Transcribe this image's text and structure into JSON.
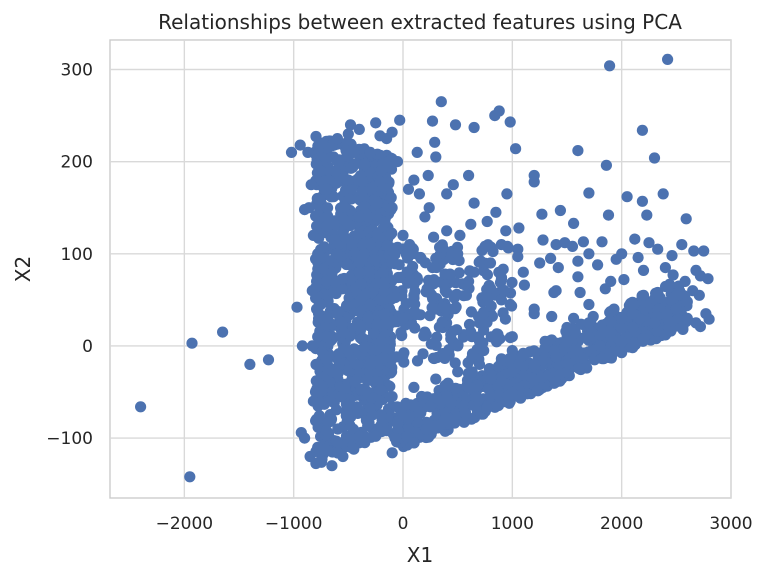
{
  "chart_data": {
    "type": "scatter",
    "title": "Relationships between extracted features using PCA",
    "xlabel": "X1",
    "ylabel": "X2",
    "xlim": [
      -2680,
      3000
    ],
    "ylim": [
      -165,
      332
    ],
    "xticks": [
      -2000,
      -1000,
      0,
      1000,
      2000,
      3000
    ],
    "yticks": [
      -100,
      0,
      100,
      200,
      300
    ],
    "xtick_labels": [
      "−2000",
      "−1000",
      "0",
      "1000",
      "2000",
      "3000"
    ],
    "ytick_labels": [
      "−100",
      "0",
      "100",
      "200",
      "300"
    ],
    "grid": true,
    "legend": "none",
    "marker_color": "#4c72b0",
    "series": [
      {
        "points": [
          [
            -2400,
            -66
          ],
          [
            -1950,
            -142
          ],
          [
            -1930,
            3
          ],
          [
            -1650,
            15
          ],
          [
            -1400,
            -20
          ],
          [
            -1230,
            -15
          ],
          [
            -1020,
            210
          ],
          [
            -940,
            218
          ],
          [
            -870,
            210
          ],
          [
            -970,
            42
          ],
          [
            -920,
            0
          ],
          [
            -930,
            -94
          ],
          [
            -900,
            -100
          ],
          [
            -860,
            150
          ],
          [
            -900,
            148
          ],
          [
            350,
            265
          ],
          [
            880,
            255
          ],
          [
            840,
            250
          ],
          [
            980,
            243
          ],
          [
            1030,
            214
          ],
          [
            480,
            240
          ],
          [
            650,
            237
          ],
          [
            270,
            244
          ],
          [
            290,
            221
          ],
          [
            130,
            210
          ],
          [
            -100,
            232
          ],
          [
            -150,
            225
          ],
          [
            -210,
            228
          ],
          [
            1890,
            304
          ],
          [
            2420,
            311
          ],
          [
            2190,
            234
          ],
          [
            2300,
            204
          ],
          [
            1600,
            212
          ],
          [
            1860,
            196
          ],
          [
            2380,
            165
          ],
          [
            1700,
            166
          ],
          [
            2050,
            162
          ],
          [
            2190,
            157
          ],
          [
            1880,
            142
          ],
          [
            2590,
            138
          ],
          [
            2230,
            142
          ],
          [
            2120,
            116
          ],
          [
            2250,
            112
          ],
          [
            1820,
            113
          ],
          [
            1200,
            185
          ],
          [
            1200,
            178
          ],
          [
            460,
            175
          ],
          [
            150,
            165
          ],
          [
            240,
            150
          ],
          [
            1060,
            128
          ],
          [
            1270,
            143
          ],
          [
            1440,
            147
          ],
          [
            1560,
            133
          ],
          [
            1650,
            113
          ],
          [
            1400,
            110
          ],
          [
            1480,
            112
          ],
          [
            1550,
            108
          ],
          [
            1280,
            115
          ],
          [
            940,
            125
          ],
          [
            770,
            135
          ],
          [
            620,
            132
          ],
          [
            520,
            120
          ],
          [
            400,
            125
          ],
          [
            280,
            118
          ],
          [
            750,
            108
          ],
          [
            900,
            110
          ],
          [
            1050,
            97
          ],
          [
            1250,
            90
          ],
          [
            1420,
            85
          ],
          [
            1600,
            92
          ],
          [
            1780,
            88
          ],
          [
            1950,
            94
          ],
          [
            2150,
            96
          ],
          [
            2330,
            105
          ],
          [
            2460,
            98
          ],
          [
            2660,
            103
          ],
          [
            2750,
            103
          ],
          [
            2720,
            76
          ],
          [
            2790,
            73
          ],
          [
            2680,
            82
          ],
          [
            2580,
            70
          ],
          [
            2470,
            77
          ],
          [
            2200,
            82
          ],
          [
            2020,
            72
          ],
          [
            1850,
            62
          ],
          [
            1620,
            58
          ],
          [
            1380,
            58
          ],
          [
            1110,
            66
          ],
          [
            900,
            72
          ],
          [
            650,
            80
          ],
          [
            430,
            78
          ],
          [
            270,
            85
          ],
          [
            160,
            96
          ],
          [
            60,
            110
          ],
          [
            2710,
            55
          ],
          [
            2600,
            48
          ],
          [
            2450,
            50
          ],
          [
            2330,
            58
          ],
          [
            2110,
            45
          ],
          [
            1930,
            40
          ],
          [
            1740,
            32
          ],
          [
            1560,
            30
          ],
          [
            1360,
            32
          ],
          [
            1200,
            40
          ],
          [
            980,
            45
          ],
          [
            780,
            52
          ],
          [
            580,
            55
          ],
          [
            400,
            58
          ],
          [
            220,
            62
          ],
          [
            60,
            70
          ],
          [
            2770,
            35
          ],
          [
            2800,
            29
          ],
          [
            2680,
            25
          ],
          [
            2720,
            21
          ],
          [
            2560,
            18
          ],
          [
            2400,
            12
          ],
          [
            2200,
            8
          ],
          [
            2000,
            5
          ],
          [
            1800,
            0
          ],
          [
            1600,
            -5
          ],
          [
            1400,
            -12
          ],
          [
            1200,
            -20
          ],
          [
            1000,
            -28
          ],
          [
            800,
            -36
          ],
          [
            600,
            -45
          ],
          [
            400,
            -55
          ],
          [
            200,
            -64
          ],
          [
            0,
            -75
          ],
          [
            -200,
            -86
          ],
          [
            -400,
            -98
          ],
          [
            2600,
            30
          ],
          [
            2300,
            25
          ],
          [
            2100,
            20
          ],
          [
            1900,
            15
          ],
          [
            1700,
            10
          ],
          [
            1500,
            4
          ],
          [
            1300,
            -2
          ],
          [
            1100,
            -8
          ],
          [
            900,
            -14
          ],
          [
            700,
            -20
          ],
          [
            500,
            -28
          ],
          [
            300,
            -36
          ],
          [
            100,
            -45
          ],
          [
            -100,
            -55
          ],
          [
            -300,
            -67
          ],
          [
            -500,
            -80
          ],
          [
            -700,
            -92
          ],
          [
            2500,
            40
          ],
          [
            2000,
            30
          ],
          [
            1500,
            20
          ],
          [
            1000,
            10
          ],
          [
            500,
            0
          ],
          [
            0,
            -10
          ],
          [
            -300,
            -20
          ],
          [
            -600,
            -30
          ],
          [
            2200,
            55
          ],
          [
            1700,
            45
          ],
          [
            1200,
            35
          ],
          [
            700,
            25
          ],
          [
            200,
            15
          ],
          [
            -200,
            5
          ],
          [
            -500,
            -5
          ],
          [
            -700,
            -15
          ],
          [
            1900,
            70
          ],
          [
            1400,
            60
          ],
          [
            900,
            50
          ],
          [
            400,
            40
          ],
          [
            0,
            30
          ],
          [
            -400,
            20
          ],
          [
            -700,
            10
          ],
          [
            1600,
            75
          ],
          [
            1100,
            80
          ],
          [
            600,
            70
          ],
          [
            100,
            55
          ],
          [
            -300,
            45
          ],
          [
            -600,
            35
          ],
          [
            800,
            90
          ],
          [
            300,
            95
          ],
          [
            -100,
            90
          ],
          [
            -400,
            80
          ],
          [
            -700,
            70
          ],
          [
            500,
            100
          ],
          [
            0,
            120
          ],
          [
            -300,
            110
          ],
          [
            -600,
            100
          ],
          [
            200,
            140
          ],
          [
            -100,
            150
          ],
          [
            -400,
            140
          ],
          [
            -700,
            130
          ],
          [
            100,
            180
          ],
          [
            -200,
            190
          ],
          [
            -500,
            180
          ],
          [
            -700,
            170
          ],
          [
            -50,
            200
          ],
          [
            -300,
            210
          ],
          [
            -600,
            200
          ],
          [
            -750,
            190
          ],
          [
            -400,
            235
          ],
          [
            -500,
            230
          ],
          [
            -600,
            225
          ],
          [
            -700,
            215
          ],
          [
            -750,
            -125
          ],
          [
            -650,
            -130
          ],
          [
            -550,
            -120
          ],
          [
            -450,
            -112
          ],
          [
            -350,
            -105
          ],
          [
            -250,
            -98
          ],
          [
            -150,
            -92
          ],
          [
            -50,
            -85
          ],
          [
            50,
            -78
          ],
          [
            150,
            -72
          ],
          [
            250,
            -66
          ],
          [
            350,
            -60
          ],
          [
            -780,
            -110
          ],
          [
            -790,
            -80
          ],
          [
            -800,
            -50
          ],
          [
            -790,
            -20
          ],
          [
            -780,
            10
          ],
          [
            -790,
            40
          ],
          [
            -790,
            70
          ],
          [
            -780,
            100
          ],
          [
            -790,
            130
          ],
          [
            -780,
            160
          ],
          [
            -760,
            190
          ],
          [
            -740,
            220
          ],
          [
            -820,
            -60
          ],
          [
            -830,
            0
          ],
          [
            -830,
            60
          ],
          [
            -820,
            120
          ],
          [
            -840,
            175
          ],
          [
            -850,
            -120
          ],
          [
            700,
            5
          ],
          [
            1000,
            -5
          ],
          [
            1300,
            5
          ],
          [
            1700,
            25
          ],
          [
            2100,
            35
          ],
          [
            2500,
            55
          ],
          [
            2650,
            60
          ],
          [
            2400,
            85
          ],
          [
            2550,
            110
          ],
          [
            2000,
            100
          ],
          [
            1700,
            100
          ],
          [
            1350,
            95
          ],
          [
            1050,
            105
          ],
          [
            850,
            145
          ],
          [
            650,
            155
          ],
          [
            400,
            165
          ],
          [
            230,
            185
          ],
          [
            50,
            170
          ],
          [
            600,
            185
          ],
          [
            950,
            165
          ],
          [
            300,
            205
          ],
          [
            -30,
            245
          ],
          [
            -250,
            242
          ],
          [
            -480,
            240
          ]
        ]
      }
    ]
  }
}
